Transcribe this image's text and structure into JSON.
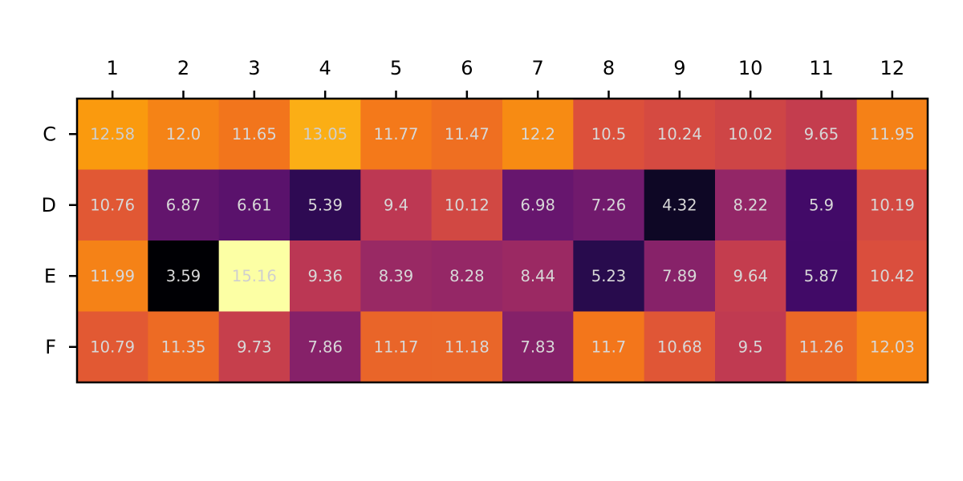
{
  "chart_data": {
    "type": "heatmap",
    "title": "",
    "xlabel": "",
    "ylabel": "",
    "colormap": "inferno",
    "value_range": [
      3.59,
      15.16
    ],
    "x_axis_position": "top",
    "grid": false,
    "colorbar": false,
    "x_tick_labels": [
      "1",
      "2",
      "3",
      "4",
      "5",
      "6",
      "7",
      "8",
      "9",
      "10",
      "11",
      "12"
    ],
    "y_tick_labels": [
      "C",
      "D",
      "E",
      "F"
    ],
    "values": [
      [
        12.58,
        12.0,
        11.65,
        13.05,
        11.77,
        11.47,
        12.2,
        10.5,
        10.24,
        10.02,
        9.65,
        11.95
      ],
      [
        10.76,
        6.87,
        6.61,
        5.39,
        9.4,
        10.12,
        6.98,
        7.26,
        4.32,
        8.22,
        5.9,
        10.19
      ],
      [
        11.99,
        3.59,
        15.16,
        9.36,
        8.39,
        8.28,
        8.44,
        5.23,
        7.89,
        9.64,
        5.87,
        10.42
      ],
      [
        10.79,
        11.35,
        9.73,
        7.86,
        11.17,
        11.18,
        7.83,
        11.7,
        10.68,
        9.5,
        11.26,
        12.03
      ]
    ],
    "value_labels": [
      [
        "12.58",
        "12.0",
        "11.65",
        "13.05",
        "11.77",
        "11.47",
        "12.2",
        "10.5",
        "10.24",
        "10.02",
        "9.65",
        "11.95"
      ],
      [
        "10.76",
        "6.87",
        "6.61",
        "5.39",
        "9.4",
        "10.12",
        "6.98",
        "7.26",
        "4.32",
        "8.22",
        "5.9",
        "10.19"
      ],
      [
        "11.99",
        "3.59",
        "15.16",
        "9.36",
        "8.39",
        "8.28",
        "8.44",
        "5.23",
        "7.89",
        "9.64",
        "5.87",
        "10.42"
      ],
      [
        "10.79",
        "11.35",
        "9.73",
        "7.86",
        "11.17",
        "11.18",
        "7.83",
        "11.7",
        "10.68",
        "9.5",
        "11.26",
        "12.03"
      ]
    ]
  }
}
